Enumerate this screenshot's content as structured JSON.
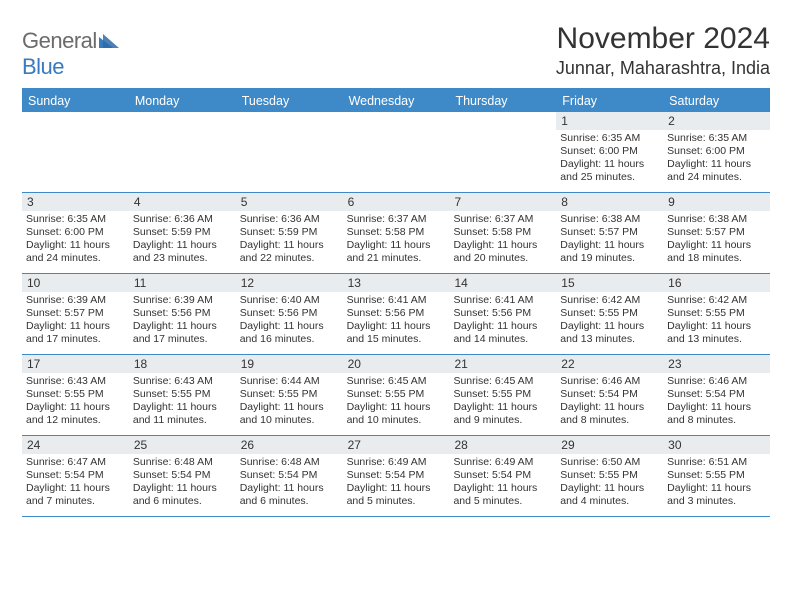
{
  "logo": {
    "general": "General",
    "blue": "Blue"
  },
  "title": "November 2024",
  "location": "Junnar, Maharashtra, India",
  "dayNames": [
    "Sunday",
    "Monday",
    "Tuesday",
    "Wednesday",
    "Thursday",
    "Friday",
    "Saturday"
  ],
  "colors": {
    "header_bg": "#3e8ac9",
    "header_text": "#ffffff",
    "daynum_bg": "#e9ecef",
    "border": "#3e8ac9",
    "body_text": "#333333",
    "logo_gray": "#6b6b6b",
    "logo_blue": "#3a7bbf"
  },
  "weeks": [
    [
      null,
      null,
      null,
      null,
      null,
      {
        "n": "1",
        "sunrise": "Sunrise: 6:35 AM",
        "sunset": "Sunset: 6:00 PM",
        "d1": "Daylight: 11 hours",
        "d2": "and 25 minutes."
      },
      {
        "n": "2",
        "sunrise": "Sunrise: 6:35 AM",
        "sunset": "Sunset: 6:00 PM",
        "d1": "Daylight: 11 hours",
        "d2": "and 24 minutes."
      }
    ],
    [
      {
        "n": "3",
        "sunrise": "Sunrise: 6:35 AM",
        "sunset": "Sunset: 6:00 PM",
        "d1": "Daylight: 11 hours",
        "d2": "and 24 minutes."
      },
      {
        "n": "4",
        "sunrise": "Sunrise: 6:36 AM",
        "sunset": "Sunset: 5:59 PM",
        "d1": "Daylight: 11 hours",
        "d2": "and 23 minutes."
      },
      {
        "n": "5",
        "sunrise": "Sunrise: 6:36 AM",
        "sunset": "Sunset: 5:59 PM",
        "d1": "Daylight: 11 hours",
        "d2": "and 22 minutes."
      },
      {
        "n": "6",
        "sunrise": "Sunrise: 6:37 AM",
        "sunset": "Sunset: 5:58 PM",
        "d1": "Daylight: 11 hours",
        "d2": "and 21 minutes."
      },
      {
        "n": "7",
        "sunrise": "Sunrise: 6:37 AM",
        "sunset": "Sunset: 5:58 PM",
        "d1": "Daylight: 11 hours",
        "d2": "and 20 minutes."
      },
      {
        "n": "8",
        "sunrise": "Sunrise: 6:38 AM",
        "sunset": "Sunset: 5:57 PM",
        "d1": "Daylight: 11 hours",
        "d2": "and 19 minutes."
      },
      {
        "n": "9",
        "sunrise": "Sunrise: 6:38 AM",
        "sunset": "Sunset: 5:57 PM",
        "d1": "Daylight: 11 hours",
        "d2": "and 18 minutes."
      }
    ],
    [
      {
        "n": "10",
        "sunrise": "Sunrise: 6:39 AM",
        "sunset": "Sunset: 5:57 PM",
        "d1": "Daylight: 11 hours",
        "d2": "and 17 minutes."
      },
      {
        "n": "11",
        "sunrise": "Sunrise: 6:39 AM",
        "sunset": "Sunset: 5:56 PM",
        "d1": "Daylight: 11 hours",
        "d2": "and 17 minutes."
      },
      {
        "n": "12",
        "sunrise": "Sunrise: 6:40 AM",
        "sunset": "Sunset: 5:56 PM",
        "d1": "Daylight: 11 hours",
        "d2": "and 16 minutes."
      },
      {
        "n": "13",
        "sunrise": "Sunrise: 6:41 AM",
        "sunset": "Sunset: 5:56 PM",
        "d1": "Daylight: 11 hours",
        "d2": "and 15 minutes."
      },
      {
        "n": "14",
        "sunrise": "Sunrise: 6:41 AM",
        "sunset": "Sunset: 5:56 PM",
        "d1": "Daylight: 11 hours",
        "d2": "and 14 minutes."
      },
      {
        "n": "15",
        "sunrise": "Sunrise: 6:42 AM",
        "sunset": "Sunset: 5:55 PM",
        "d1": "Daylight: 11 hours",
        "d2": "and 13 minutes."
      },
      {
        "n": "16",
        "sunrise": "Sunrise: 6:42 AM",
        "sunset": "Sunset: 5:55 PM",
        "d1": "Daylight: 11 hours",
        "d2": "and 13 minutes."
      }
    ],
    [
      {
        "n": "17",
        "sunrise": "Sunrise: 6:43 AM",
        "sunset": "Sunset: 5:55 PM",
        "d1": "Daylight: 11 hours",
        "d2": "and 12 minutes."
      },
      {
        "n": "18",
        "sunrise": "Sunrise: 6:43 AM",
        "sunset": "Sunset: 5:55 PM",
        "d1": "Daylight: 11 hours",
        "d2": "and 11 minutes."
      },
      {
        "n": "19",
        "sunrise": "Sunrise: 6:44 AM",
        "sunset": "Sunset: 5:55 PM",
        "d1": "Daylight: 11 hours",
        "d2": "and 10 minutes."
      },
      {
        "n": "20",
        "sunrise": "Sunrise: 6:45 AM",
        "sunset": "Sunset: 5:55 PM",
        "d1": "Daylight: 11 hours",
        "d2": "and 10 minutes."
      },
      {
        "n": "21",
        "sunrise": "Sunrise: 6:45 AM",
        "sunset": "Sunset: 5:55 PM",
        "d1": "Daylight: 11 hours",
        "d2": "and 9 minutes."
      },
      {
        "n": "22",
        "sunrise": "Sunrise: 6:46 AM",
        "sunset": "Sunset: 5:54 PM",
        "d1": "Daylight: 11 hours",
        "d2": "and 8 minutes."
      },
      {
        "n": "23",
        "sunrise": "Sunrise: 6:46 AM",
        "sunset": "Sunset: 5:54 PM",
        "d1": "Daylight: 11 hours",
        "d2": "and 8 minutes."
      }
    ],
    [
      {
        "n": "24",
        "sunrise": "Sunrise: 6:47 AM",
        "sunset": "Sunset: 5:54 PM",
        "d1": "Daylight: 11 hours",
        "d2": "and 7 minutes."
      },
      {
        "n": "25",
        "sunrise": "Sunrise: 6:48 AM",
        "sunset": "Sunset: 5:54 PM",
        "d1": "Daylight: 11 hours",
        "d2": "and 6 minutes."
      },
      {
        "n": "26",
        "sunrise": "Sunrise: 6:48 AM",
        "sunset": "Sunset: 5:54 PM",
        "d1": "Daylight: 11 hours",
        "d2": "and 6 minutes."
      },
      {
        "n": "27",
        "sunrise": "Sunrise: 6:49 AM",
        "sunset": "Sunset: 5:54 PM",
        "d1": "Daylight: 11 hours",
        "d2": "and 5 minutes."
      },
      {
        "n": "28",
        "sunrise": "Sunrise: 6:49 AM",
        "sunset": "Sunset: 5:54 PM",
        "d1": "Daylight: 11 hours",
        "d2": "and 5 minutes."
      },
      {
        "n": "29",
        "sunrise": "Sunrise: 6:50 AM",
        "sunset": "Sunset: 5:55 PM",
        "d1": "Daylight: 11 hours",
        "d2": "and 4 minutes."
      },
      {
        "n": "30",
        "sunrise": "Sunrise: 6:51 AM",
        "sunset": "Sunset: 5:55 PM",
        "d1": "Daylight: 11 hours",
        "d2": "and 3 minutes."
      }
    ]
  ]
}
